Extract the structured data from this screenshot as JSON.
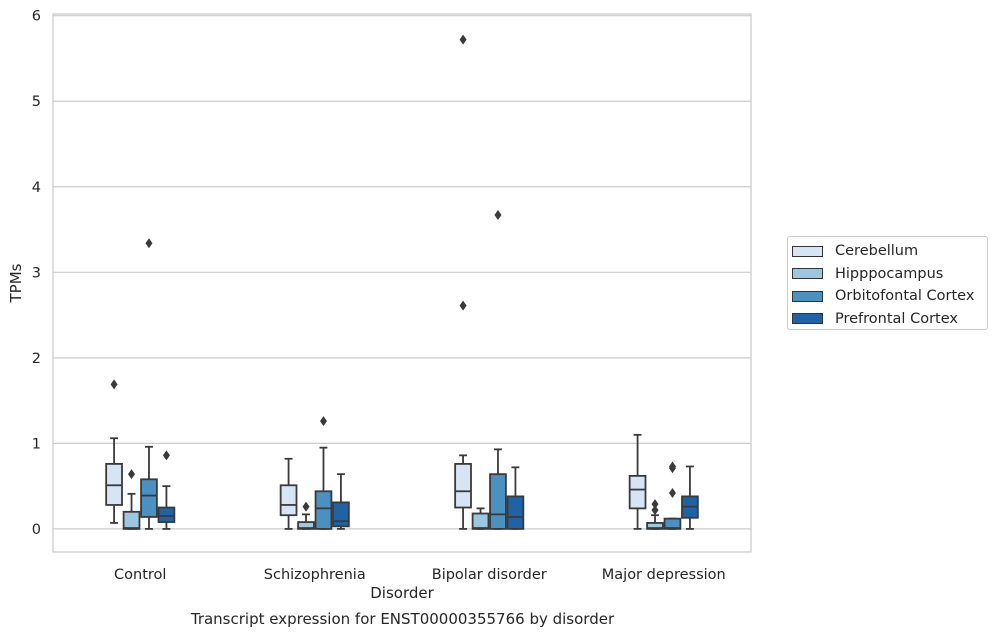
{
  "chart_data": {
    "type": "box",
    "title": "",
    "caption": "Transcript expression for ENST00000355766 by disorder",
    "xlabel": "Disorder",
    "ylabel": "TPMs",
    "ylim": [
      -0.27,
      6.02
    ],
    "yticks": [
      "0",
      "1",
      "2",
      "3",
      "4",
      "5",
      "6"
    ],
    "categories": [
      "Control",
      "Schizophrenia",
      "Bipolar disorder",
      "Major depression"
    ],
    "grid": "horizontal",
    "legend_position": "right",
    "series": [
      {
        "name": "Cerebellum",
        "color": "#d6e5f4",
        "boxes": [
          {
            "whislo": 0.07,
            "q1": 0.28,
            "med": 0.51,
            "q3": 0.76,
            "whishi": 1.06,
            "fliers": [
              1.69
            ]
          },
          {
            "whislo": 0.0,
            "q1": 0.16,
            "med": 0.28,
            "q3": 0.51,
            "whishi": 0.82,
            "fliers": []
          },
          {
            "whislo": 0.0,
            "q1": 0.25,
            "med": 0.44,
            "q3": 0.76,
            "whishi": 0.86,
            "fliers": [
              2.61,
              5.72
            ]
          },
          {
            "whislo": 0.0,
            "q1": 0.24,
            "med": 0.46,
            "q3": 0.62,
            "whishi": 1.1,
            "fliers": []
          }
        ]
      },
      {
        "name": "Hipppocampus",
        "color": "#9bc7e0",
        "boxes": [
          {
            "whislo": 0.0,
            "q1": 0.0,
            "med": 0.01,
            "q3": 0.2,
            "whishi": 0.41,
            "fliers": [
              0.64
            ]
          },
          {
            "whislo": 0.0,
            "q1": 0.0,
            "med": 0.01,
            "q3": 0.08,
            "whishi": 0.17,
            "fliers": [
              0.26
            ]
          },
          {
            "whislo": 0.0,
            "q1": 0.0,
            "med": 0.01,
            "q3": 0.18,
            "whishi": 0.24,
            "fliers": []
          },
          {
            "whislo": 0.0,
            "q1": 0.0,
            "med": 0.01,
            "q3": 0.07,
            "whishi": 0.16,
            "fliers": [
              0.22,
              0.29
            ]
          }
        ]
      },
      {
        "name": "Orbitofontal Cortex",
        "color": "#4a91c2",
        "boxes": [
          {
            "whislo": 0.0,
            "q1": 0.14,
            "med": 0.39,
            "q3": 0.58,
            "whishi": 0.96,
            "fliers": [
              3.34
            ]
          },
          {
            "whislo": 0.0,
            "q1": 0.0,
            "med": 0.24,
            "q3": 0.44,
            "whishi": 0.95,
            "fliers": [
              1.26
            ]
          },
          {
            "whislo": 0.0,
            "q1": 0.0,
            "med": 0.17,
            "q3": 0.64,
            "whishi": 0.93,
            "fliers": [
              3.67
            ]
          },
          {
            "whislo": 0.0,
            "q1": 0.0,
            "med": 0.01,
            "q3": 0.12,
            "whishi": 0.12,
            "fliers": [
              0.42,
              0.71,
              0.73
            ]
          }
        ]
      },
      {
        "name": "Prefrontal Cortex",
        "color": "#1e63a6",
        "boxes": [
          {
            "whislo": 0.0,
            "q1": 0.08,
            "med": 0.15,
            "q3": 0.25,
            "whishi": 0.5,
            "fliers": [
              0.86
            ]
          },
          {
            "whislo": 0.0,
            "q1": 0.03,
            "med": 0.09,
            "q3": 0.31,
            "whishi": 0.64,
            "fliers": []
          },
          {
            "whislo": 0.0,
            "q1": 0.0,
            "med": 0.14,
            "q3": 0.38,
            "whishi": 0.72,
            "fliers": []
          },
          {
            "whislo": 0.0,
            "q1": 0.13,
            "med": 0.26,
            "q3": 0.38,
            "whishi": 0.73,
            "fliers": []
          }
        ]
      }
    ]
  }
}
